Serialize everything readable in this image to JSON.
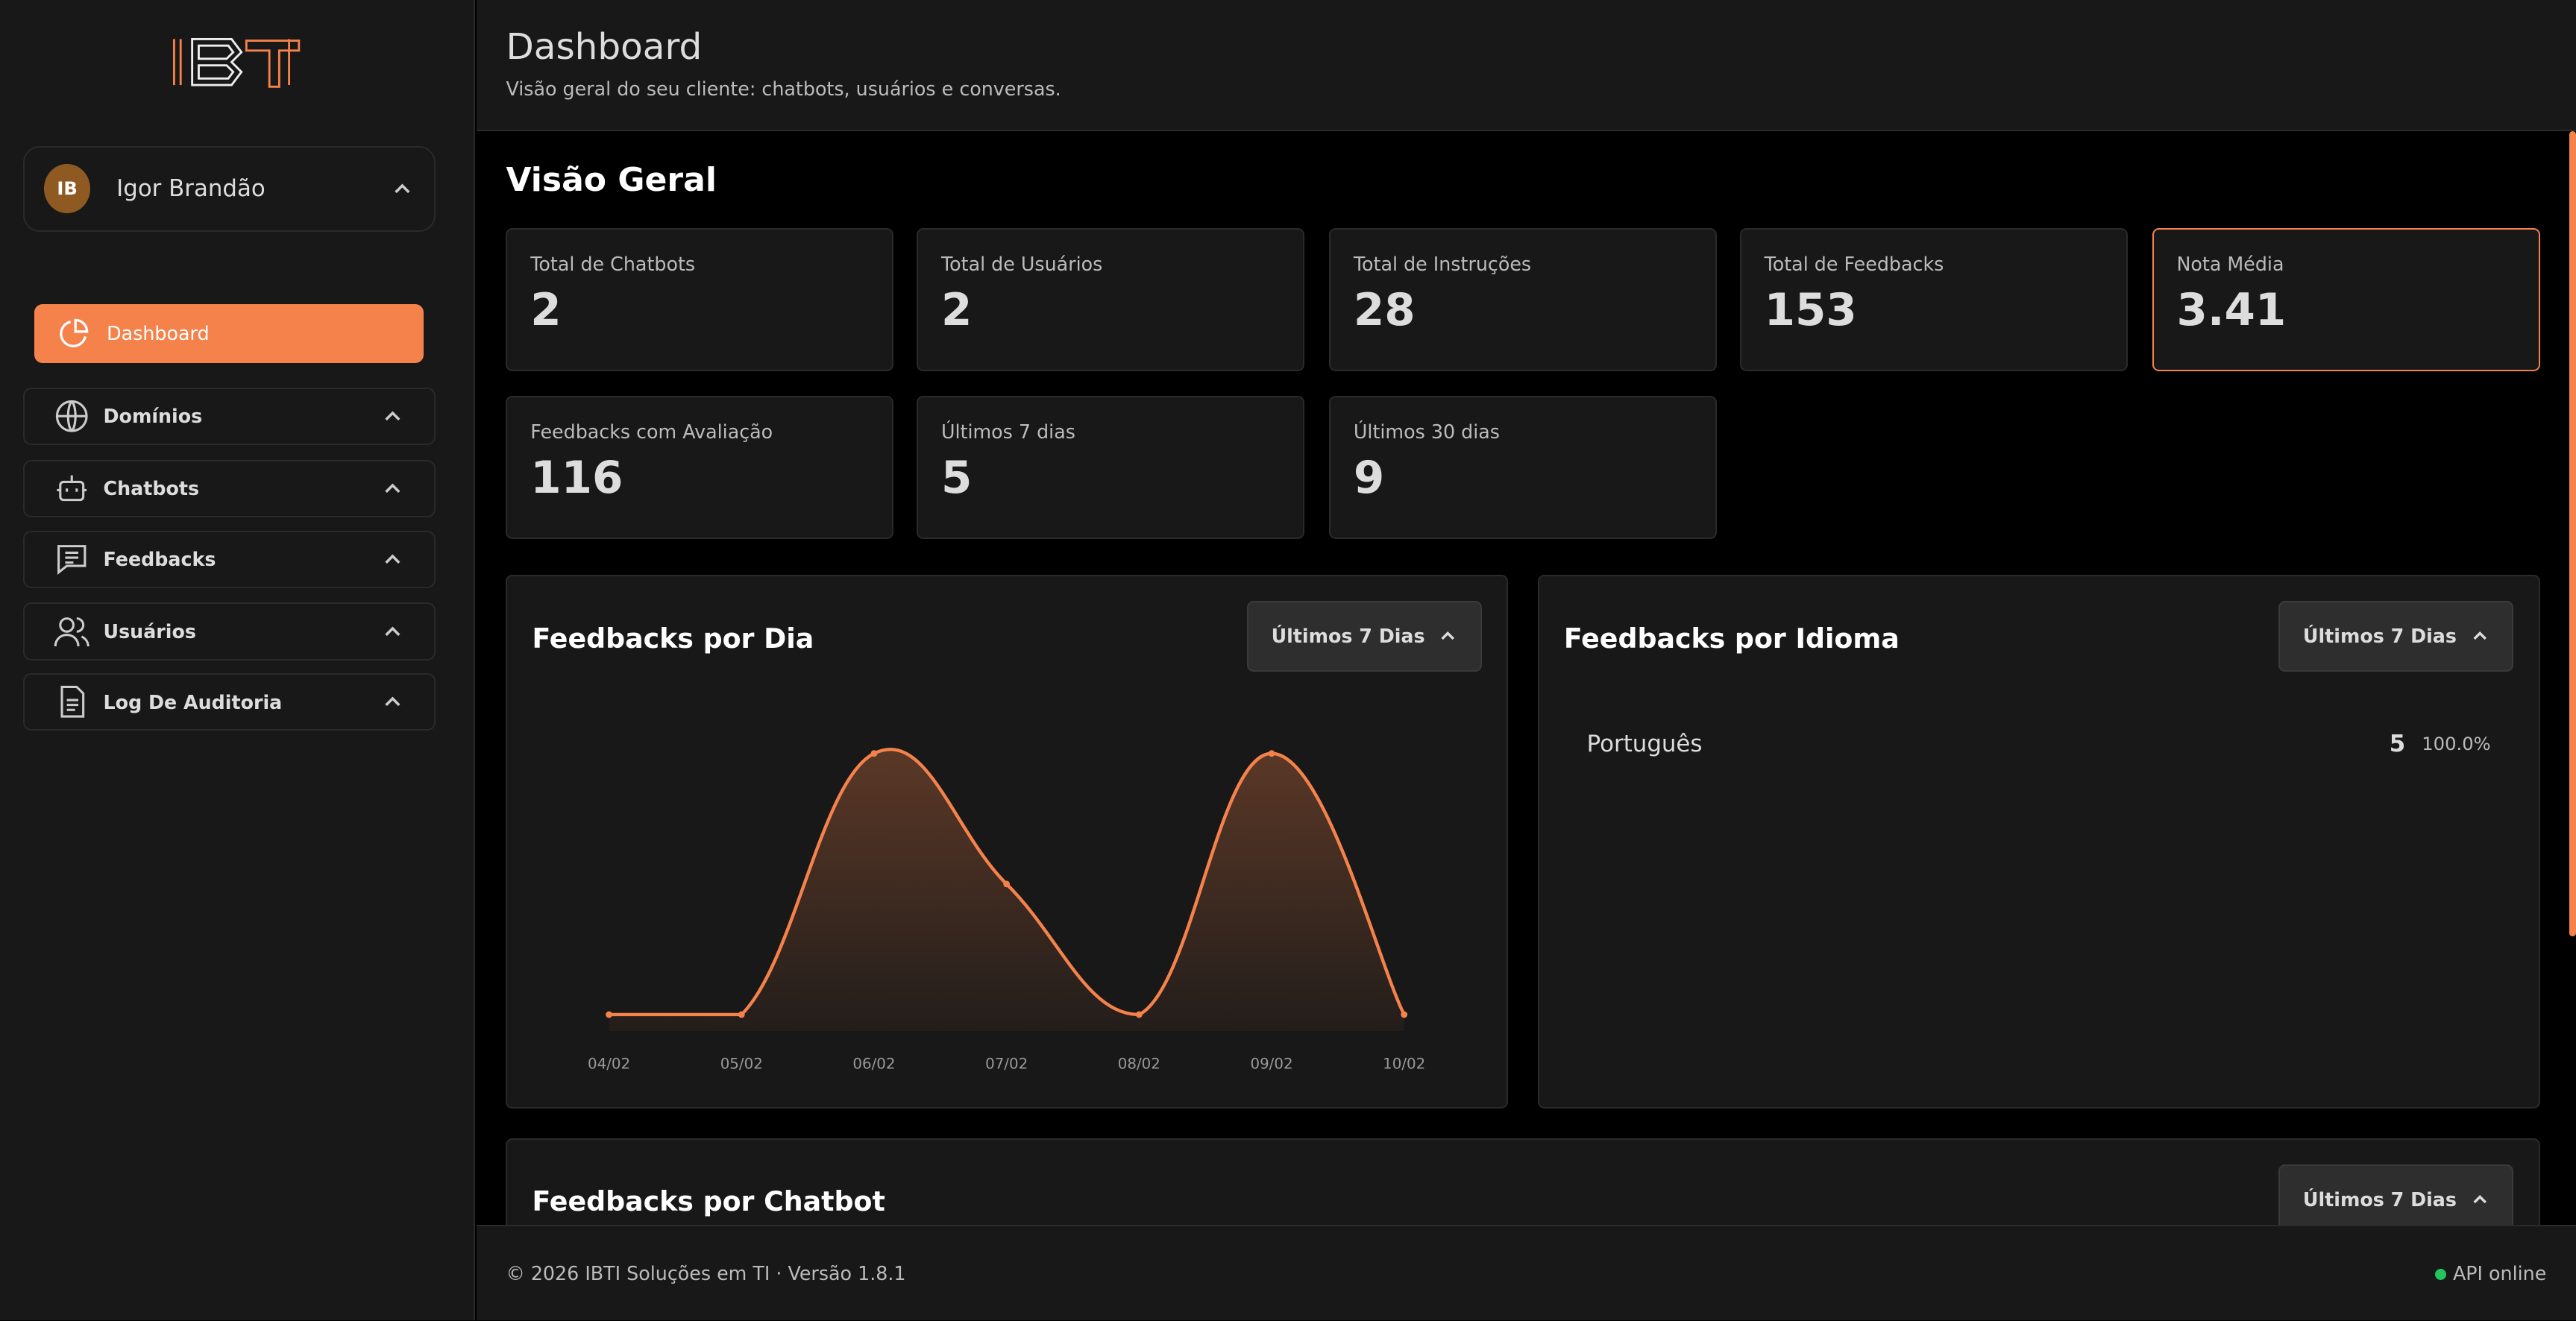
{
  "brand": {
    "logo_text": "IBTI",
    "accent": "#f5824a"
  },
  "user": {
    "initials": "IB",
    "name": "Igor Brandão"
  },
  "sidebar": {
    "items": [
      {
        "label": "Dashboard",
        "icon": "pie-chart-icon",
        "active": true
      },
      {
        "label": "Domínios",
        "icon": "globe-icon"
      },
      {
        "label": "Chatbots",
        "icon": "bot-icon"
      },
      {
        "label": "Feedbacks",
        "icon": "message-square-icon"
      },
      {
        "label": "Usuários",
        "icon": "users-icon"
      },
      {
        "label": "Log De Auditoria",
        "icon": "file-text-icon"
      }
    ]
  },
  "header": {
    "title": "Dashboard",
    "subtitle": "Visão geral do seu cliente: chatbots, usuários e conversas."
  },
  "overview": {
    "title": "Visão Geral",
    "cards": [
      {
        "label": "Total de Chatbots",
        "value": "2"
      },
      {
        "label": "Total de Usuários",
        "value": "2"
      },
      {
        "label": "Total de Instruções",
        "value": "28"
      },
      {
        "label": "Total de Feedbacks",
        "value": "153"
      },
      {
        "label": "Nota Média",
        "value": "3.41"
      },
      {
        "label": "Feedbacks com Avaliação",
        "value": "116"
      },
      {
        "label": "Últimos 7 dias",
        "value": "5"
      },
      {
        "label": "Últimos 30 dias",
        "value": "9"
      }
    ]
  },
  "panels": {
    "per_day": {
      "title": "Feedbacks por Dia",
      "filter": "Últimos 7 Dias"
    },
    "per_language": {
      "title": "Feedbacks por Idioma",
      "filter": "Últimos 7 Dias",
      "rows": [
        {
          "language": "Português",
          "count": "5",
          "percent": "100.0%"
        }
      ]
    },
    "per_chatbot": {
      "title": "Feedbacks por Chatbot",
      "filter": "Últimos 7 Dias"
    }
  },
  "chart_data": {
    "type": "area",
    "categories": [
      "04/02",
      "05/02",
      "06/02",
      "07/02",
      "08/02",
      "09/02",
      "10/02"
    ],
    "values": [
      0,
      0,
      2,
      1,
      0,
      2,
      0
    ],
    "color": "#f5824a",
    "grid": false
  },
  "footer": {
    "copyright": "© 2026 IBTI Soluções em TI · Versão 1.8.1",
    "status": "API online",
    "status_color": "#22c55e"
  }
}
